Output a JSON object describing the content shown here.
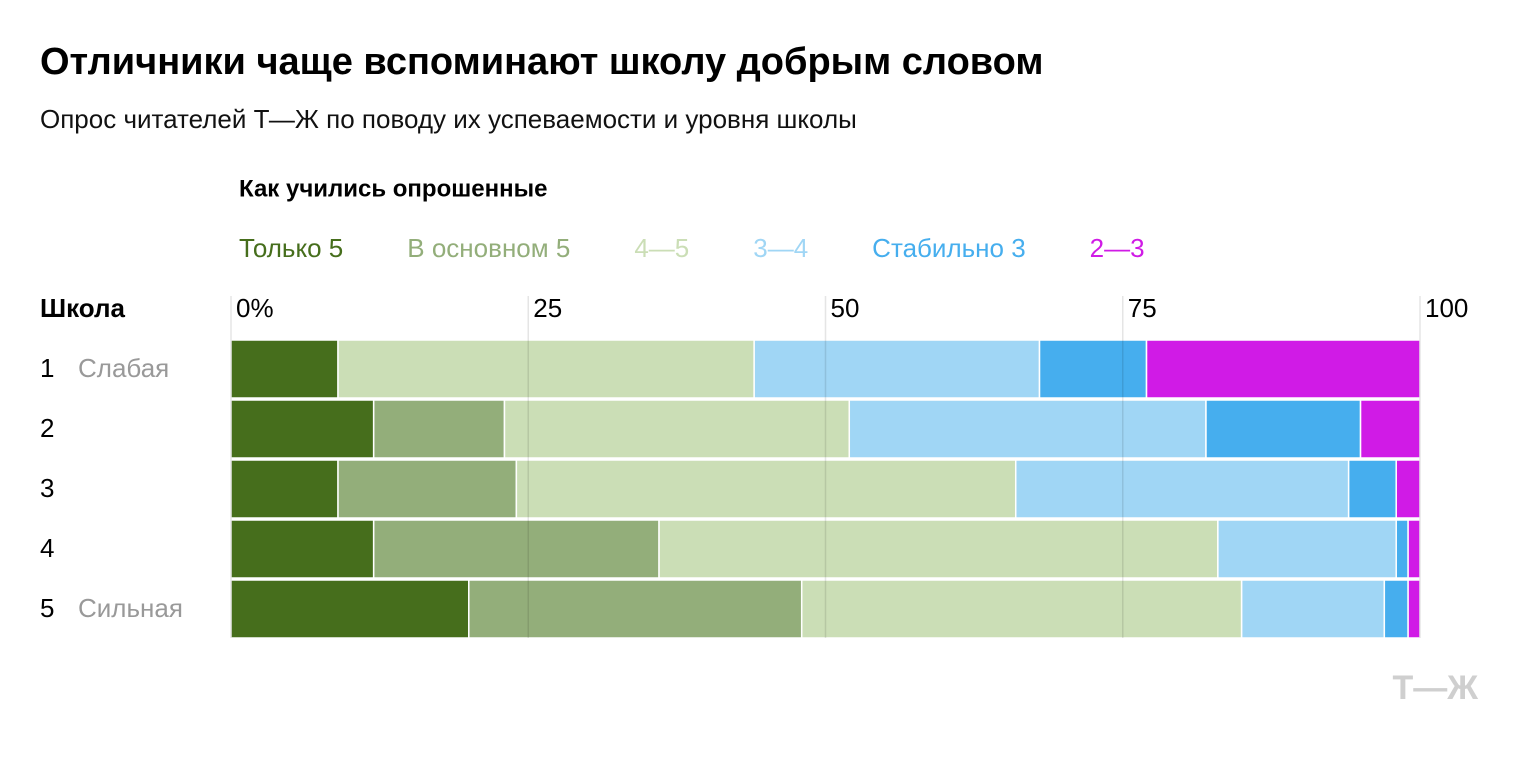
{
  "chart_data": {
    "type": "stacked-barh",
    "title": "Отличники чаще вспоминают школу добрым словом",
    "subtitle": "Опрос читателей Т—Ж по поводу их успеваемости и уровня школы",
    "legend_title": "Как учились опрошенные",
    "y_label": "Школа",
    "categories": [
      "1",
      "2",
      "3",
      "4",
      "5"
    ],
    "category_notes": [
      "Слабая",
      null,
      null,
      null,
      "Сильная"
    ],
    "series": [
      {
        "name": "Только 5",
        "color": "#466e1c",
        "values": [
          9,
          12,
          9,
          12,
          20
        ]
      },
      {
        "name": "В основном 5",
        "color": "#93ae7a",
        "values": [
          0,
          11,
          15,
          24,
          28
        ]
      },
      {
        "name": "4—5",
        "color": "#cbdeb6",
        "values": [
          35,
          29,
          42,
          47,
          37
        ]
      },
      {
        "name": "3—4",
        "color": "#a0d6f5",
        "values": [
          24,
          30,
          28,
          15,
          12
        ]
      },
      {
        "name": "Стабильно 3",
        "color": "#46aeee",
        "values": [
          9,
          13,
          4,
          1,
          2
        ]
      },
      {
        "name": "2—3",
        "color": "#d01be6",
        "values": [
          23,
          5,
          2,
          1,
          1
        ]
      }
    ],
    "xlim": [
      0,
      100
    ],
    "xticks": [
      {
        "value": 0,
        "label": "0%"
      },
      25,
      50,
      75,
      100
    ],
    "grid": true,
    "logo": "Т—Ж"
  }
}
